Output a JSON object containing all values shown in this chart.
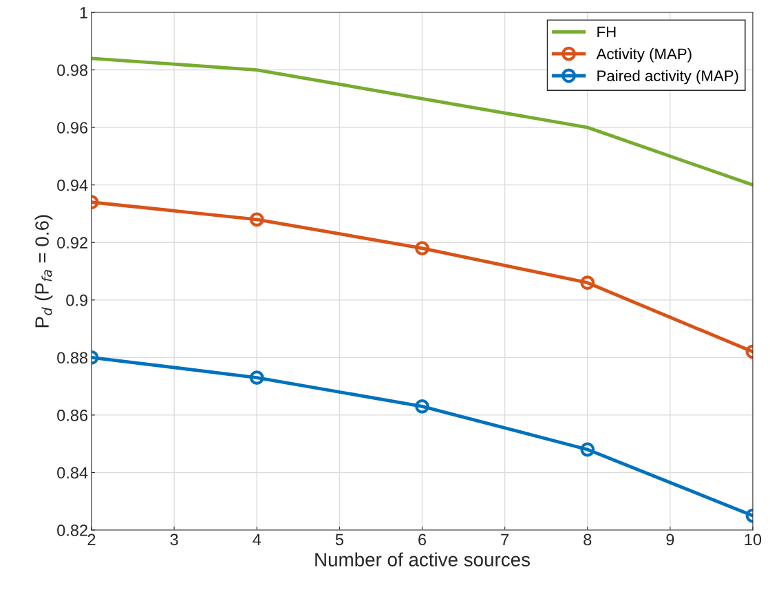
{
  "chart_data": {
    "type": "line",
    "xlabel": "Number of active sources",
    "ylabel": "P$_{d}$ (P$_{fa}$ = 0.6)",
    "x": [
      2,
      4,
      6,
      8,
      10
    ],
    "series": [
      {
        "name": "FH",
        "color": "#77ac30",
        "marker": "none",
        "values": [
          0.984,
          0.98,
          0.97,
          0.96,
          0.94
        ]
      },
      {
        "name": "Activity (MAP)",
        "color": "#d95319",
        "marker": "circle",
        "values": [
          0.934,
          0.928,
          0.918,
          0.906,
          0.882
        ]
      },
      {
        "name": "Paired activity (MAP)",
        "color": "#0072bd",
        "marker": "circle",
        "values": [
          0.88,
          0.873,
          0.863,
          0.848,
          0.825
        ]
      }
    ],
    "xlim": [
      2,
      10
    ],
    "xticks": [
      2,
      3,
      4,
      5,
      6,
      7,
      8,
      9,
      10
    ],
    "ylim": [
      0.82,
      1
    ],
    "yticks": [
      0.82,
      0.84,
      0.86,
      0.88,
      0.9,
      0.92,
      0.94,
      0.96,
      0.98,
      1
    ],
    "grid": true,
    "legend": "top right",
    "line_style": "solid"
  }
}
